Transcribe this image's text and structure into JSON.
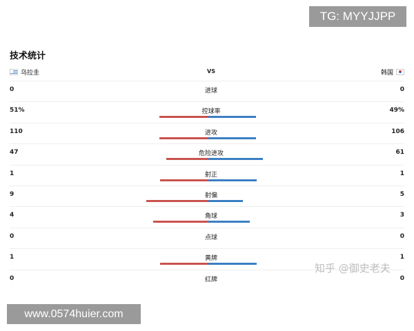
{
  "overlay": {
    "tg": "TG: MYYJJPP",
    "website": "www.0574huier.com",
    "zhihu": "知乎 @御史老夫"
  },
  "title": "技术统计",
  "header": {
    "left_team": "乌拉圭",
    "vs": "VS",
    "right_team": "韩国",
    "left_flag": "uruguay-flag-icon",
    "right_flag": "korea-flag-icon"
  },
  "colors": {
    "left": "#c9514c",
    "right": "#3a7fc3"
  },
  "stats": [
    {
      "label": "进球",
      "left": "0",
      "right": "0",
      "left_ratio": 0.0,
      "right_ratio": 0.0
    },
    {
      "label": "控球率",
      "left": "51%",
      "right": "49%",
      "left_ratio": 0.51,
      "right_ratio": 0.49
    },
    {
      "label": "进攻",
      "left": "110",
      "right": "106",
      "left_ratio": 0.51,
      "right_ratio": 0.49
    },
    {
      "label": "危险进攻",
      "left": "47",
      "right": "61",
      "left_ratio": 0.435,
      "right_ratio": 0.565
    },
    {
      "label": "射正",
      "left": "1",
      "right": "1",
      "left_ratio": 0.5,
      "right_ratio": 0.5
    },
    {
      "label": "射偏",
      "left": "9",
      "right": "5",
      "left_ratio": 0.643,
      "right_ratio": 0.357
    },
    {
      "label": "角球",
      "left": "4",
      "right": "3",
      "left_ratio": 0.571,
      "right_ratio": 0.429
    },
    {
      "label": "点球",
      "left": "0",
      "right": "0",
      "left_ratio": 0.0,
      "right_ratio": 0.0
    },
    {
      "label": "黄牌",
      "left": "1",
      "right": "1",
      "left_ratio": 0.5,
      "right_ratio": 0.5
    },
    {
      "label": "红牌",
      "left": "0",
      "right": "0",
      "left_ratio": 0.0,
      "right_ratio": 0.0
    }
  ]
}
